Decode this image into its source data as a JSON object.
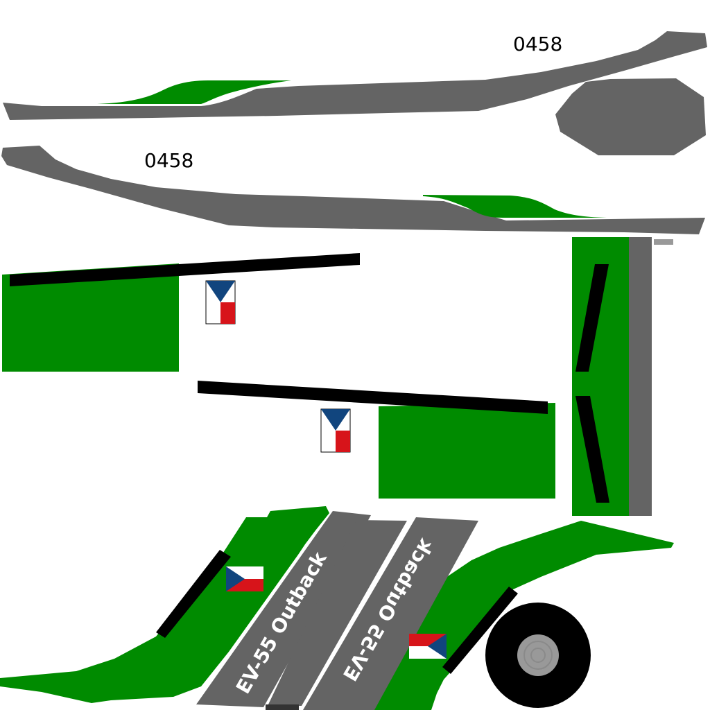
{
  "livery": {
    "registration": "0458",
    "model": "EV-55 Outback"
  },
  "colors": {
    "green": "#008b00",
    "grey": "#646464",
    "black": "#000000",
    "white": "#ffffff",
    "flag_blue": "#11457e",
    "flag_red": "#d7141a",
    "tire_grey": "#999999"
  },
  "icons": {
    "flag": "czech-flag-icon",
    "wheel": "wheel-icon"
  }
}
